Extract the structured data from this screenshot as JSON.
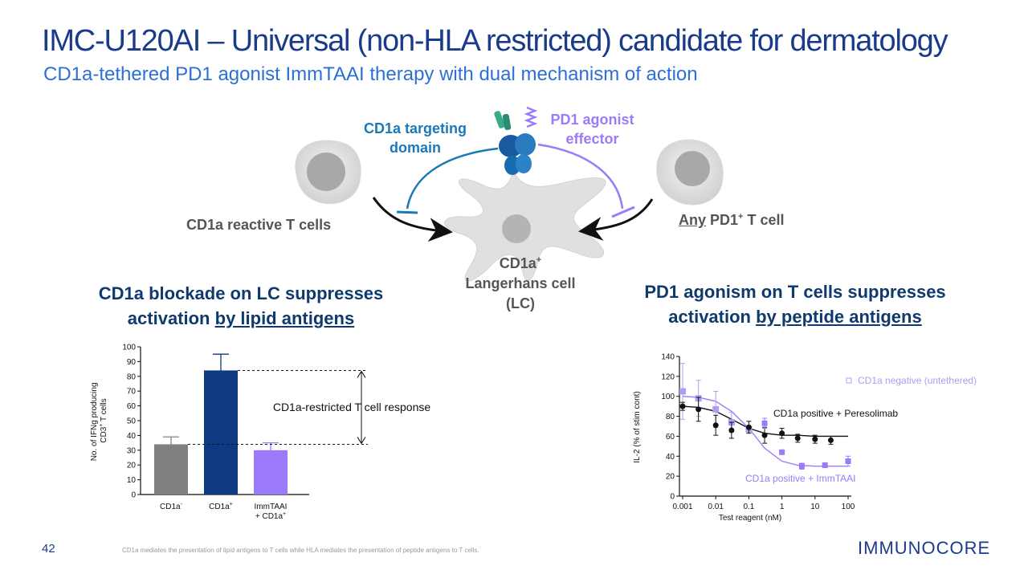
{
  "header": {
    "title": "IMC-U120AI – Universal (non-HLA restricted) candidate for dermatology",
    "subtitle": "CD1a-tethered PD1 agonist ImmTAAI therapy with dual mechanism of action"
  },
  "diagram": {
    "cd1a_domain_line1": "CD1a targeting",
    "cd1a_domain_line2": "domain",
    "pd1_line1": "PD1 agonist",
    "pd1_line2": "effector",
    "left_cell": "CD1a reactive T cells",
    "right_cell_any": "Any",
    "right_cell_rest": "PD1",
    "right_cell_sup": "+",
    "right_cell_end": "T cell",
    "lc_line1": "CD1a",
    "lc_line1_sup": "+",
    "lc_line2": "Langerhans cell",
    "lc_line3": "(LC)"
  },
  "left_section": {
    "heading_line1": "CD1a blockade on LC suppresses",
    "heading_line2_a": "activation",
    "heading_line2_b": "by lipid antigens"
  },
  "right_section": {
    "heading_line1": "PD1 agonism on T cells suppresses",
    "heading_line2_a": "activation",
    "heading_line2_b": "by peptide antigens"
  },
  "chart_data": [
    {
      "type": "bar",
      "ylabel_line1": "No. of IFNg producing",
      "ylabel_line2": "CD3",
      "ylabel_sup": "+",
      "ylabel_end": "T cells",
      "ylim": [
        0,
        100
      ],
      "yticks": [
        0,
        10,
        20,
        30,
        40,
        50,
        60,
        70,
        80,
        90,
        100
      ],
      "categories": [
        "CD1a-",
        "CD1a+",
        "ImmTAAI + CD1a+"
      ],
      "category_labels": [
        {
          "main": "CD1a",
          "sup": "-"
        },
        {
          "main": "CD1a",
          "sup": "+"
        },
        {
          "line1": "ImmTAAI",
          "line2": "+ CD1a",
          "sup": "+"
        }
      ],
      "values": [
        34,
        84,
        30
      ],
      "errors": [
        5,
        11,
        5
      ],
      "colors": [
        "#808080",
        "#0d3a80",
        "#9b7bfa"
      ],
      "annotation": "CD1a-restricted T cell response"
    },
    {
      "type": "scatter",
      "xlabel": "Test reagent (nM)",
      "ylabel": "IL-2 (% of stim cont)",
      "xscale": "log",
      "xticks": [
        0.001,
        0.01,
        0.1,
        1,
        10,
        100
      ],
      "xtick_labels": [
        "0.001",
        "0.01",
        "0.1",
        "1",
        "10",
        "100"
      ],
      "ylim": [
        0,
        140
      ],
      "yticks": [
        0,
        20,
        40,
        60,
        80,
        100,
        120,
        140
      ],
      "series": [
        {
          "name": "CD1a negative (untethered)",
          "color": "#b09cf0",
          "marker": "open-square",
          "x": [
            0.001,
            0.003,
            0.01,
            0.03,
            0.1
          ],
          "y": [
            105,
            98,
            87,
            74,
            67
          ],
          "err": [
            28,
            18,
            18,
            10,
            0
          ]
        },
        {
          "name": "CD1a positive + Peresolimab",
          "color": "#111111",
          "marker": "circle",
          "x": [
            0.001,
            0.003,
            0.01,
            0.03,
            0.1,
            0.3,
            1,
            3,
            10,
            30
          ],
          "y": [
            90,
            87,
            71,
            66,
            69,
            61,
            63,
            58,
            57,
            56
          ],
          "err": [
            4,
            12,
            10,
            8,
            6,
            8,
            5,
            4,
            4,
            4
          ],
          "fit": [
            90,
            89,
            85,
            77,
            68,
            63,
            61,
            61,
            60,
            60,
            60
          ]
        },
        {
          "name": "CD1a positive + ImmTAAI",
          "color": "#9b7bfa",
          "marker": "square",
          "x": [
            0.3,
            1,
            4,
            20,
            100
          ],
          "y": [
            73,
            44,
            30,
            31,
            35
          ],
          "err": [
            5,
            0,
            3,
            0,
            5
          ],
          "fit": [
            100,
            99,
            95,
            85,
            68,
            48,
            35,
            31,
            30,
            30,
            30
          ]
        }
      ],
      "fit_x": [
        0.001,
        0.003,
        0.01,
        0.03,
        0.1,
        0.3,
        1,
        3,
        10,
        30,
        100
      ]
    }
  ],
  "footer": {
    "page_number": "42",
    "footnote": "CD1a mediates the presentation of lipid antigens to T cells while HLA mediates the presentation of peptide antigens to T cells.",
    "logo_text": "IMMUNOCORE"
  },
  "colors": {
    "title": "#1a3a8a",
    "subtitle": "#2c6fd6",
    "cd1a_blue": "#1a7ab8",
    "pd1_purple": "#9b7bfa",
    "heading_navy": "#0f3a6e"
  }
}
